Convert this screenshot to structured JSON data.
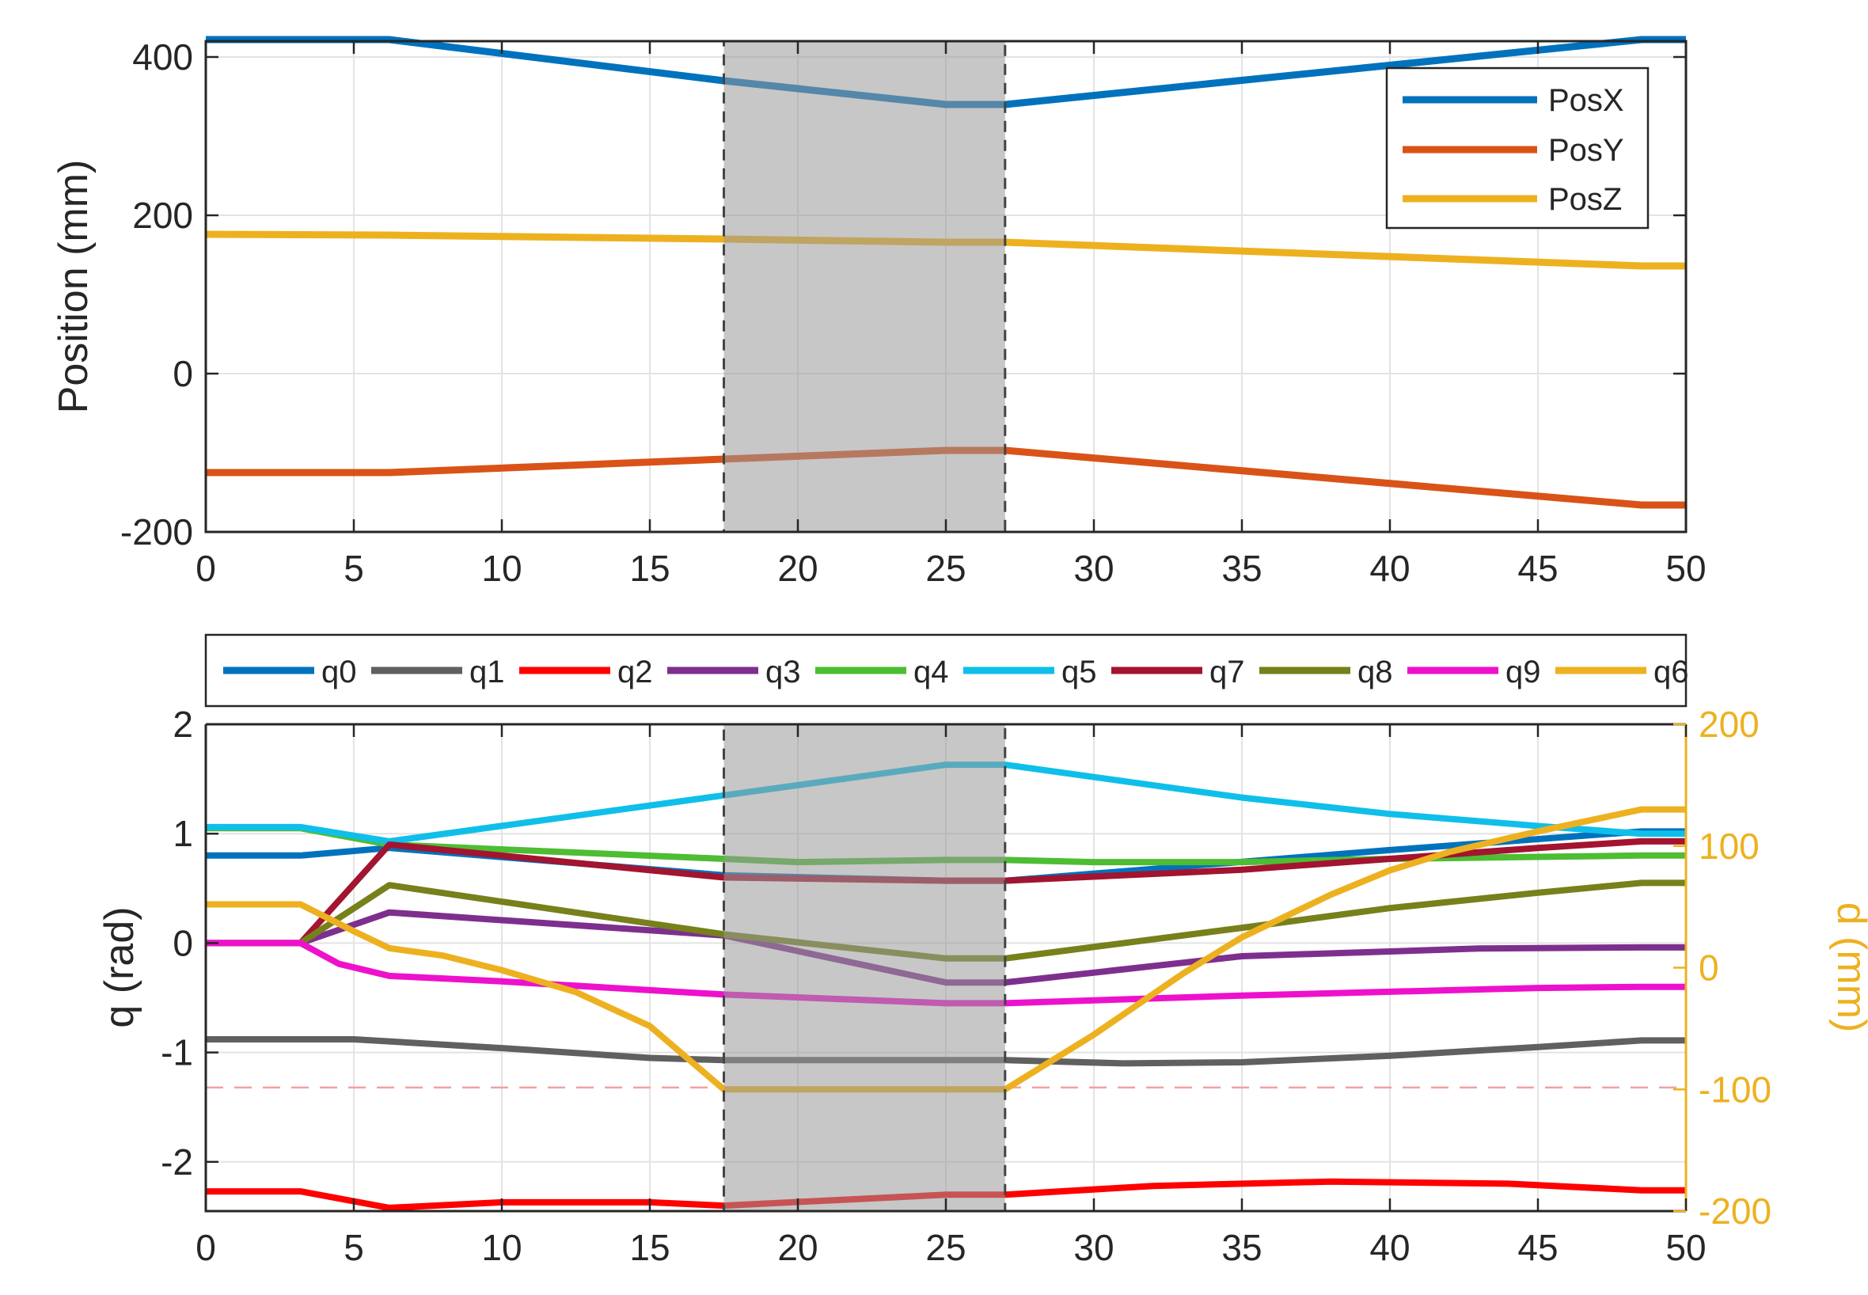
{
  "chart_data": [
    {
      "type": "line",
      "ylabel": "Position (mm)",
      "xlabel": "",
      "xlim": [
        0,
        50
      ],
      "ylim": [
        -200,
        420
      ],
      "xticks": [
        "0",
        "5",
        "10",
        "15",
        "20",
        "25",
        "30",
        "35",
        "40",
        "45",
        "50"
      ],
      "yticks": [
        "-200",
        "0",
        "200",
        "400"
      ],
      "grid": true,
      "legend_position": "top-right",
      "shaded_region": [
        17.5,
        27
      ],
      "x": [
        0,
        6.2,
        17.5,
        25,
        27,
        48.5,
        50
      ],
      "series": [
        {
          "name": "PosX",
          "color": "#0072BD",
          "values": [
            422,
            422,
            370,
            340,
            340,
            422,
            422
          ]
        },
        {
          "name": "PosY",
          "color": "#D95319",
          "values": [
            -125,
            -125,
            -108,
            -97,
            -97,
            -166,
            -166
          ]
        },
        {
          "name": "PosZ",
          "color": "#EDB120",
          "values": [
            176,
            175,
            170,
            166,
            166,
            136,
            136
          ]
        }
      ]
    },
    {
      "type": "line",
      "ylabel": "q (rad)",
      "y2label": "d (mm)",
      "xlabel": "",
      "xlim": [
        0,
        50
      ],
      "ylim": [
        -2.45,
        2
      ],
      "y2lim": [
        -200,
        200
      ],
      "xticks": [
        "0",
        "5",
        "10",
        "15",
        "20",
        "25",
        "30",
        "35",
        "40",
        "45",
        "50"
      ],
      "yticks": [
        "-2",
        "-1",
        "0",
        "1",
        "2"
      ],
      "y2ticks": [
        "-200",
        "-100",
        "0",
        "100",
        "200"
      ],
      "grid": true,
      "legend_position": "top",
      "shaded_region": [
        17.5,
        27
      ],
      "reference_line": -1.32,
      "series": [
        {
          "name": "q0",
          "color": "#0072BD",
          "axis": "left",
          "points": [
            [
              0,
              0.8
            ],
            [
              3.2,
              0.8
            ],
            [
              6.2,
              0.87
            ],
            [
              17.5,
              0.62
            ],
            [
              25,
              0.57
            ],
            [
              27,
              0.57
            ],
            [
              40,
              0.85
            ],
            [
              48.5,
              1.02
            ],
            [
              50,
              1.02
            ]
          ]
        },
        {
          "name": "q1",
          "color": "#606060",
          "axis": "left",
          "points": [
            [
              0,
              -0.88
            ],
            [
              3.2,
              -0.88
            ],
            [
              5,
              -0.88
            ],
            [
              10,
              -0.96
            ],
            [
              15,
              -1.05
            ],
            [
              17.5,
              -1.07
            ],
            [
              25,
              -1.07
            ],
            [
              27,
              -1.07
            ],
            [
              31,
              -1.1
            ],
            [
              35,
              -1.09
            ],
            [
              40,
              -1.03
            ],
            [
              45,
              -0.95
            ],
            [
              48.5,
              -0.89
            ],
            [
              50,
              -0.89
            ]
          ]
        },
        {
          "name": "q2",
          "color": "#FF0000",
          "axis": "left",
          "points": [
            [
              0,
              -2.27
            ],
            [
              3.2,
              -2.27
            ],
            [
              6.2,
              -2.42
            ],
            [
              10,
              -2.37
            ],
            [
              15,
              -2.37
            ],
            [
              17.5,
              -2.4
            ],
            [
              25,
              -2.3
            ],
            [
              27,
              -2.3
            ],
            [
              32,
              -2.22
            ],
            [
              38,
              -2.18
            ],
            [
              44,
              -2.2
            ],
            [
              48.5,
              -2.26
            ],
            [
              50,
              -2.26
            ]
          ]
        },
        {
          "name": "q3",
          "color": "#7E2F8E",
          "axis": "left",
          "points": [
            [
              0,
              0.0
            ],
            [
              3.2,
              0.0
            ],
            [
              6.2,
              0.28
            ],
            [
              17.5,
              0.07
            ],
            [
              25,
              -0.36
            ],
            [
              27,
              -0.36
            ],
            [
              35,
              -0.12
            ],
            [
              43,
              -0.05
            ],
            [
              48.5,
              -0.04
            ],
            [
              50,
              -0.04
            ]
          ]
        },
        {
          "name": "q4",
          "color": "#4DBD33",
          "axis": "left",
          "points": [
            [
              0,
              1.05
            ],
            [
              3.2,
              1.05
            ],
            [
              6.2,
              0.9
            ],
            [
              17.5,
              0.77
            ],
            [
              20,
              0.74
            ],
            [
              25,
              0.76
            ],
            [
              27,
              0.76
            ],
            [
              30,
              0.74
            ],
            [
              35,
              0.74
            ],
            [
              40,
              0.77
            ],
            [
              48.5,
              0.8
            ],
            [
              50,
              0.8
            ]
          ]
        },
        {
          "name": "q5",
          "color": "#0FBFEA",
          "axis": "left",
          "points": [
            [
              0,
              1.06
            ],
            [
              3.2,
              1.06
            ],
            [
              6.2,
              0.93
            ],
            [
              17.5,
              1.35
            ],
            [
              25,
              1.63
            ],
            [
              27,
              1.63
            ],
            [
              35,
              1.33
            ],
            [
              40,
              1.18
            ],
            [
              45,
              1.07
            ],
            [
              48.5,
              1.0
            ],
            [
              50,
              1.0
            ]
          ]
        },
        {
          "name": "q7",
          "color": "#A2142F",
          "axis": "left",
          "points": [
            [
              0,
              0.0
            ],
            [
              3.2,
              0.0
            ],
            [
              6.2,
              0.9
            ],
            [
              17.5,
              0.6
            ],
            [
              25,
              0.57
            ],
            [
              27,
              0.57
            ],
            [
              35,
              0.67
            ],
            [
              40,
              0.77
            ],
            [
              45,
              0.87
            ],
            [
              48.5,
              0.93
            ],
            [
              50,
              0.93
            ]
          ]
        },
        {
          "name": "q8",
          "color": "#77801A",
          "axis": "left",
          "points": [
            [
              0,
              0.0
            ],
            [
              3.2,
              0.0
            ],
            [
              6.2,
              0.53
            ],
            [
              17.5,
              0.08
            ],
            [
              25,
              -0.14
            ],
            [
              27,
              -0.14
            ],
            [
              35,
              0.14
            ],
            [
              40,
              0.32
            ],
            [
              45,
              0.46
            ],
            [
              48.5,
              0.55
            ],
            [
              50,
              0.55
            ]
          ]
        },
        {
          "name": "q9",
          "color": "#EE11CC",
          "axis": "left",
          "points": [
            [
              0,
              0.0
            ],
            [
              3.2,
              0.0
            ],
            [
              4.5,
              -0.19
            ],
            [
              6.2,
              -0.3
            ],
            [
              10,
              -0.35
            ],
            [
              17.5,
              -0.47
            ],
            [
              25,
              -0.55
            ],
            [
              27,
              -0.55
            ],
            [
              35,
              -0.48
            ],
            [
              45,
              -0.41
            ],
            [
              48.5,
              -0.4
            ],
            [
              50,
              -0.4
            ]
          ]
        },
        {
          "name": "q6",
          "color": "#EDB120",
          "axis": "right",
          "points": [
            [
              0,
              52
            ],
            [
              3.2,
              52
            ],
            [
              5,
              30
            ],
            [
              6.2,
              16
            ],
            [
              8,
              10
            ],
            [
              10,
              -2
            ],
            [
              12.5,
              -20
            ],
            [
              15,
              -48
            ],
            [
              17.5,
              -100
            ],
            [
              25,
              -100
            ],
            [
              27,
              -100
            ],
            [
              30,
              -55
            ],
            [
              33,
              -5
            ],
            [
              35,
              25
            ],
            [
              38,
              60
            ],
            [
              40,
              80
            ],
            [
              42,
              95
            ],
            [
              45,
              112
            ],
            [
              48.5,
              130
            ],
            [
              50,
              130
            ]
          ]
        }
      ]
    }
  ]
}
